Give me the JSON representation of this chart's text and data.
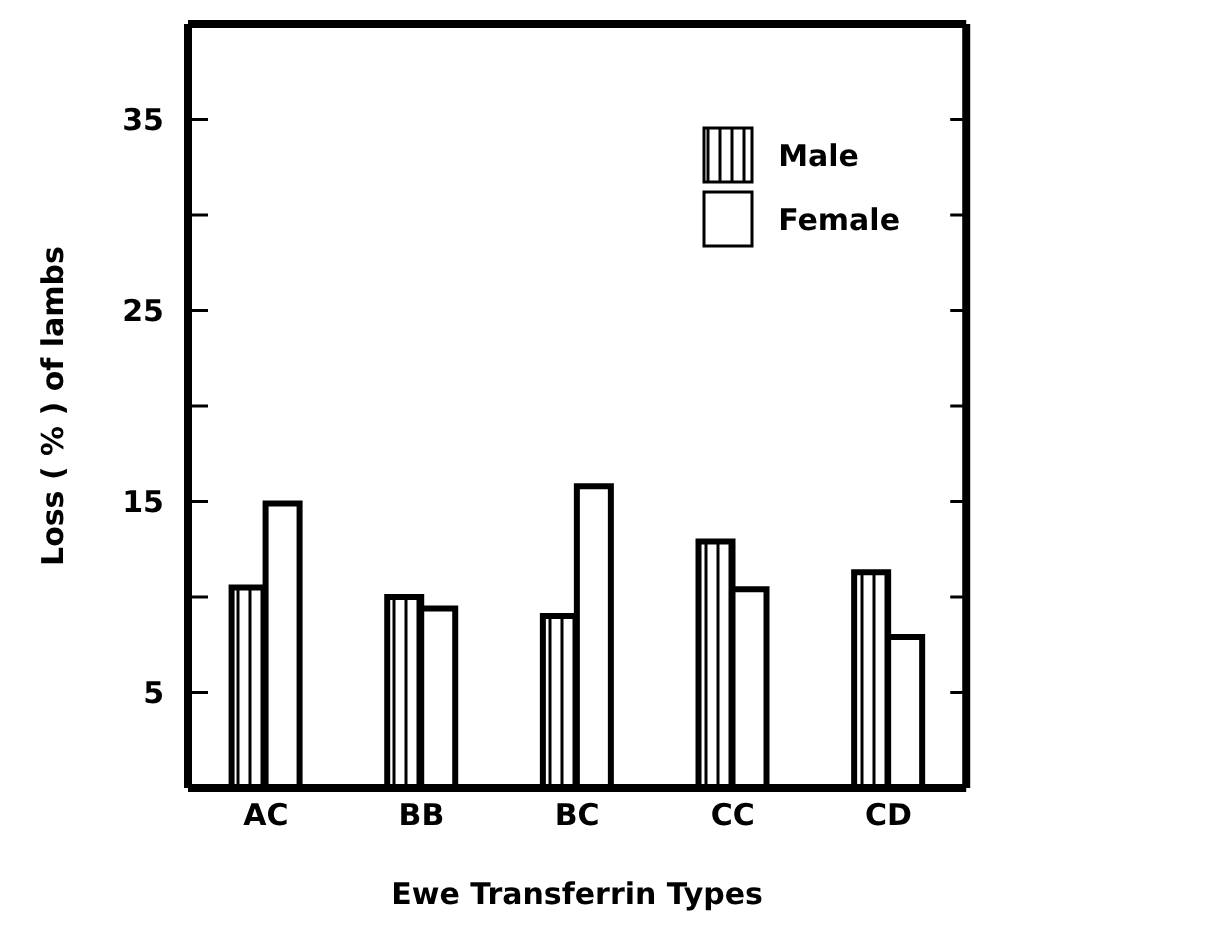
{
  "chart_data": {
    "type": "bar",
    "xlabel": "Ewe  Transferrin Types",
    "ylabel": "Loss ( % ) of lambs",
    "categories": [
      "AC",
      "BB",
      "BC",
      "CC",
      "CD"
    ],
    "series": [
      {
        "name": "Male",
        "color": "#000000",
        "values": [
          10.5,
          10,
          9,
          12.9,
          11.3
        ]
      },
      {
        "name": "Female",
        "color": "#ffffff",
        "values": [
          14.9,
          9.4,
          15.8,
          10.4,
          7.9
        ]
      }
    ],
    "ylim": [
      0,
      40
    ],
    "yticks": [
      {
        "value": 5,
        "label": "5"
      },
      {
        "value": 10,
        "label": null
      },
      {
        "value": 15,
        "label": "15"
      },
      {
        "value": 20,
        "label": null
      },
      {
        "value": 25,
        "label": "25"
      },
      {
        "value": 30,
        "label": null
      },
      {
        "value": 35,
        "label": "35"
      }
    ],
    "legend": "top right",
    "grid": false
  }
}
